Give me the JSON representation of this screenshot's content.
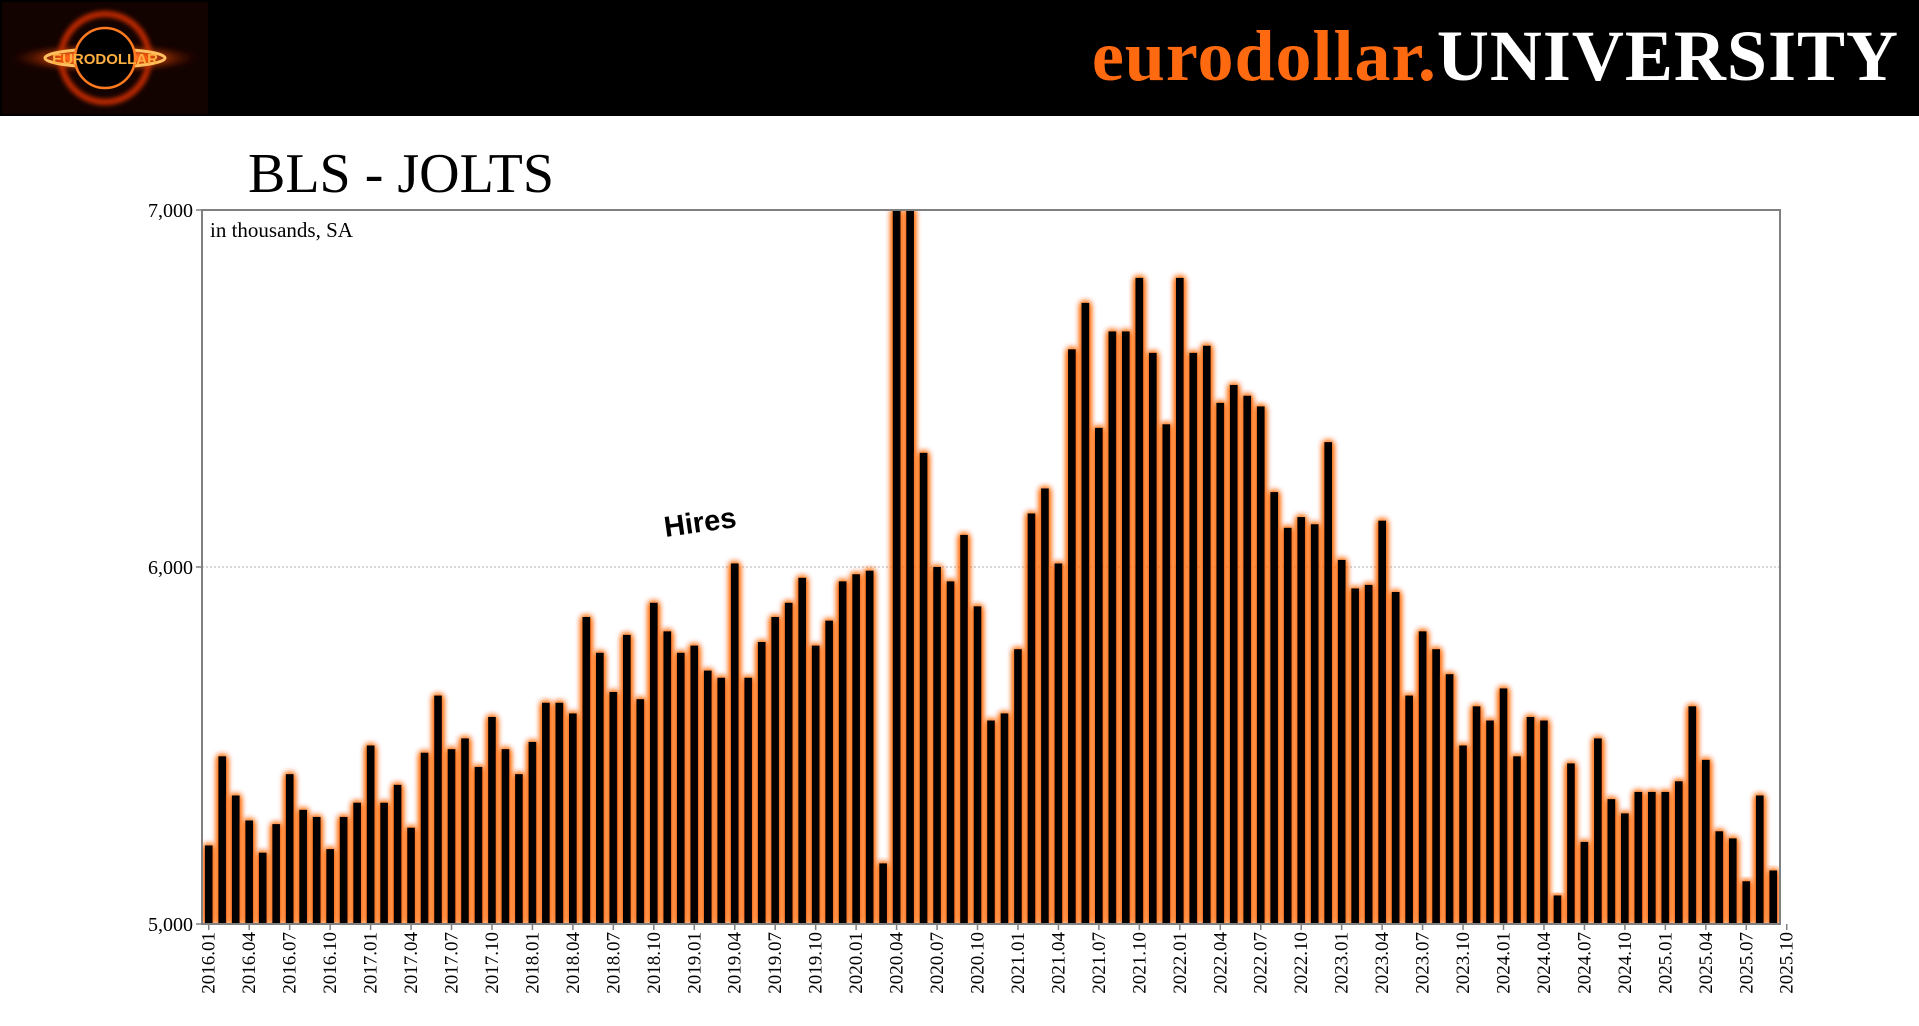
{
  "header": {
    "brand_part1": "eurodollar.",
    "brand_part2": "UNIVERSITY",
    "logo_icon": "black-hole-logo-icon",
    "logo_text": "EURODOLLAR"
  },
  "colors": {
    "header_bg": "#000000",
    "brand_orange": "#ff6a10",
    "bar_fill": "#000000",
    "bar_glow": "#ff6a10"
  },
  "chart_data": {
    "type": "bar",
    "title": "BLS - JOLTS",
    "units_note": "in thousands, SA",
    "annotation": "Hires",
    "ylim": [
      5000,
      7000
    ],
    "y_ticks": [
      {
        "value": 5000,
        "label": "5,000"
      },
      {
        "value": 6000,
        "label": "6,000"
      },
      {
        "value": 7000,
        "label": "7,000"
      }
    ],
    "grid": true,
    "x_labels": [
      "2016.01",
      "2016.04",
      "2016.07",
      "2016.10",
      "2017.01",
      "2017.04",
      "2017.07",
      "2017.10",
      "2018.01",
      "2018.04",
      "2018.07",
      "2018.10",
      "2019.01",
      "2019.04",
      "2019.07",
      "2019.10",
      "2020.01",
      "2020.04",
      "2020.07",
      "2020.10",
      "2021.01",
      "2021.04",
      "2021.07",
      "2021.10",
      "2022.01",
      "2022.04",
      "2022.07",
      "2022.10",
      "2023.01",
      "2023.04",
      "2023.07",
      "2023.10",
      "2024.01",
      "2024.04",
      "2024.07",
      "2024.10",
      "2025.01",
      "2025.04",
      "2025.07",
      "2025.10"
    ],
    "start_month": "2016.01",
    "values": [
      5220,
      5470,
      5360,
      5290,
      5200,
      5280,
      5420,
      5320,
      5300,
      5210,
      5300,
      5340,
      5500,
      5340,
      5390,
      5270,
      5480,
      5640,
      5490,
      5520,
      5440,
      5580,
      5490,
      5420,
      5510,
      5620,
      5620,
      5590,
      5860,
      5760,
      5650,
      5810,
      5630,
      5900,
      5820,
      5760,
      5780,
      5710,
      5690,
      6010,
      5690,
      5790,
      5860,
      5900,
      5970,
      5780,
      5850,
      5960,
      5980,
      5990,
      5170,
      7000,
      7000,
      6320,
      6000,
      5960,
      6090,
      5890,
      5570,
      5590,
      5770,
      6150,
      6220,
      6010,
      6610,
      6740,
      6390,
      6660,
      6660,
      6810,
      6600,
      6400,
      6810,
      6600,
      6620,
      6460,
      6510,
      6480,
      6450,
      6210,
      6110,
      6140,
      6120,
      6350,
      6020,
      5940,
      5950,
      6130,
      5930,
      5640,
      5820,
      5770,
      5700,
      5500,
      5610,
      5570,
      5660,
      5470,
      5580,
      5570,
      5080,
      5450,
      5230,
      5520,
      5350,
      5310,
      5370,
      5370,
      5370,
      5400,
      5610,
      5460,
      5260,
      5240,
      5120,
      5360,
      5150
    ]
  }
}
